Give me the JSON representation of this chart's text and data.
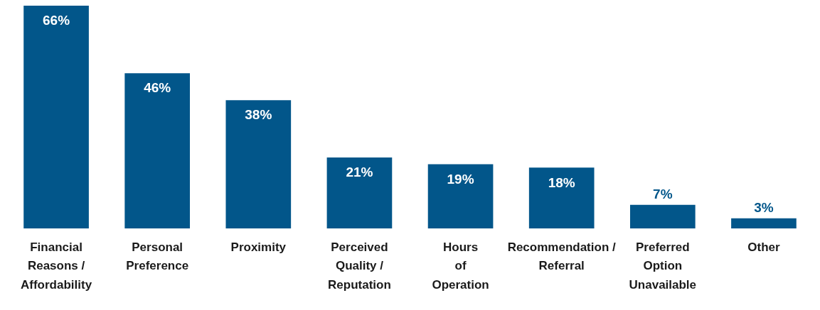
{
  "chart_data": {
    "type": "bar",
    "categories": [
      "Financial Reasons / Affordability",
      "Personal Preference",
      "Proximity",
      "Perceived Quality / Reputation",
      "Hours of Operation",
      "Recommendation / Referral",
      "Preferred Option Unavailable",
      "Other"
    ],
    "values": [
      66,
      46,
      38,
      21,
      19,
      18,
      7,
      3
    ],
    "value_labels": [
      "66%",
      "46%",
      "38%",
      "21%",
      "19%",
      "18%",
      "7%",
      "3%"
    ],
    "color": "#02568a",
    "grid": false,
    "legend": false
  }
}
